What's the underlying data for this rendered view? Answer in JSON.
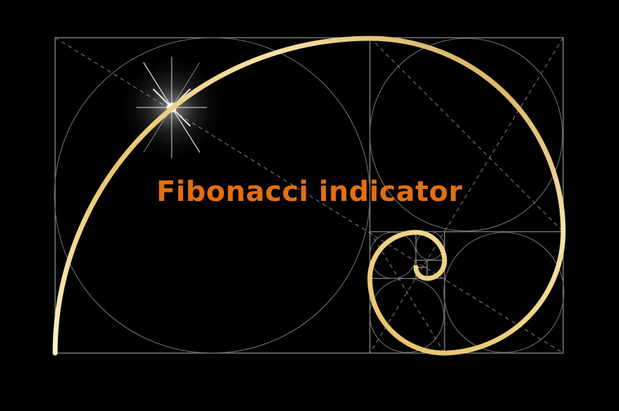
{
  "title": "Fibonacci indicator",
  "colors": {
    "background": "#000000",
    "grid_lines": "#8a8a8a",
    "spiral": "#e9c46a",
    "title_text": "#e26f12",
    "sparkle": "#ffffff"
  },
  "icons": [
    "golden-spiral-icon",
    "sparkle-icon"
  ]
}
